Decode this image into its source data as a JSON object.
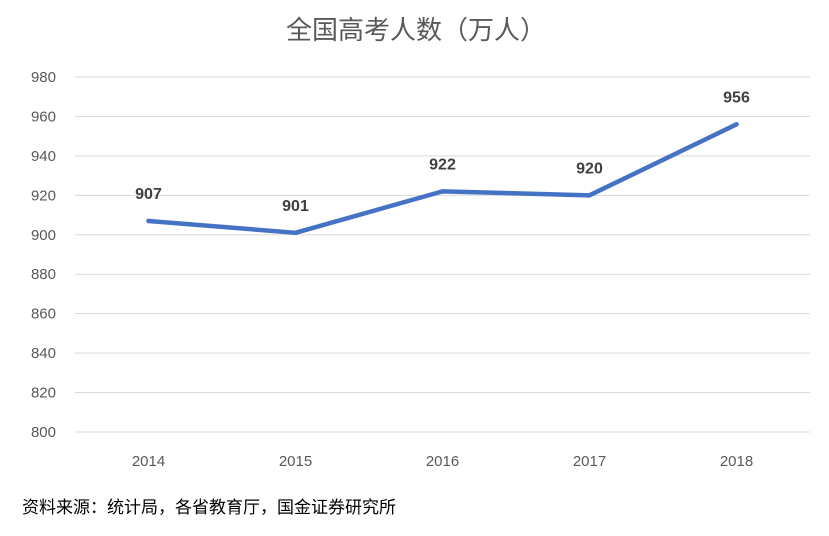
{
  "chart_data": {
    "type": "line",
    "title": "全国高考人数（万人）",
    "xlabel": "",
    "ylabel": "",
    "categories": [
      "2014",
      "2015",
      "2016",
      "2017",
      "2018"
    ],
    "series": [
      {
        "name": "全国高考人数",
        "values": [
          907,
          901,
          922,
          920,
          956
        ],
        "color": "#4472C4"
      }
    ],
    "data_labels": [
      "907",
      "901",
      "922",
      "920",
      "956"
    ],
    "ylim": [
      800,
      980
    ],
    "yticks": [
      800,
      820,
      840,
      860,
      880,
      900,
      920,
      940,
      960,
      980
    ],
    "ytick_labels": [
      "800",
      "820",
      "840",
      "860",
      "880",
      "900",
      "920",
      "940",
      "960",
      "980"
    ],
    "grid": true,
    "legend": "none"
  },
  "source": "资料来源：统计局，各省教育厅，国金证券研究所",
  "colors": {
    "line": "#4472C4",
    "grid": "#D9D9D9",
    "text": "#595959",
    "label": "#404040"
  }
}
